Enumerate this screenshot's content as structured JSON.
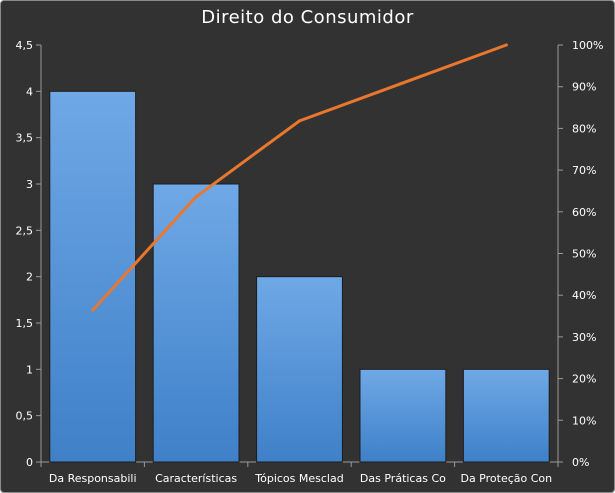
{
  "chart_data": {
    "type": "bar",
    "title": "Direito do Consumidor",
    "categories": [
      "Da Responsabili",
      "Características",
      "Tópicos Mesclad",
      "Das Práticas Co",
      "Da Proteção Con"
    ],
    "series": [
      {
        "values": [
          4,
          3,
          2,
          1,
          1
        ],
        "type": "bar",
        "axis": "left",
        "color": "#4f8fd4"
      },
      {
        "values": [
          0.364,
          0.636,
          0.818,
          0.909,
          1.0
        ],
        "type": "line",
        "axis": "right",
        "color": "#e9772d"
      }
    ],
    "ylim": [
      0,
      4.5
    ],
    "y_ticks": [
      "0",
      "0,5",
      "1",
      "1,5",
      "2",
      "2,5",
      "3",
      "3,5",
      "4",
      "4,5"
    ],
    "y2lim": [
      0,
      1
    ],
    "y2_ticks": [
      "0%",
      "10%",
      "20%",
      "30%",
      "40%",
      "50%",
      "60%",
      "70%",
      "80%",
      "90%",
      "100%"
    ],
    "grid": false,
    "legend": "none"
  }
}
